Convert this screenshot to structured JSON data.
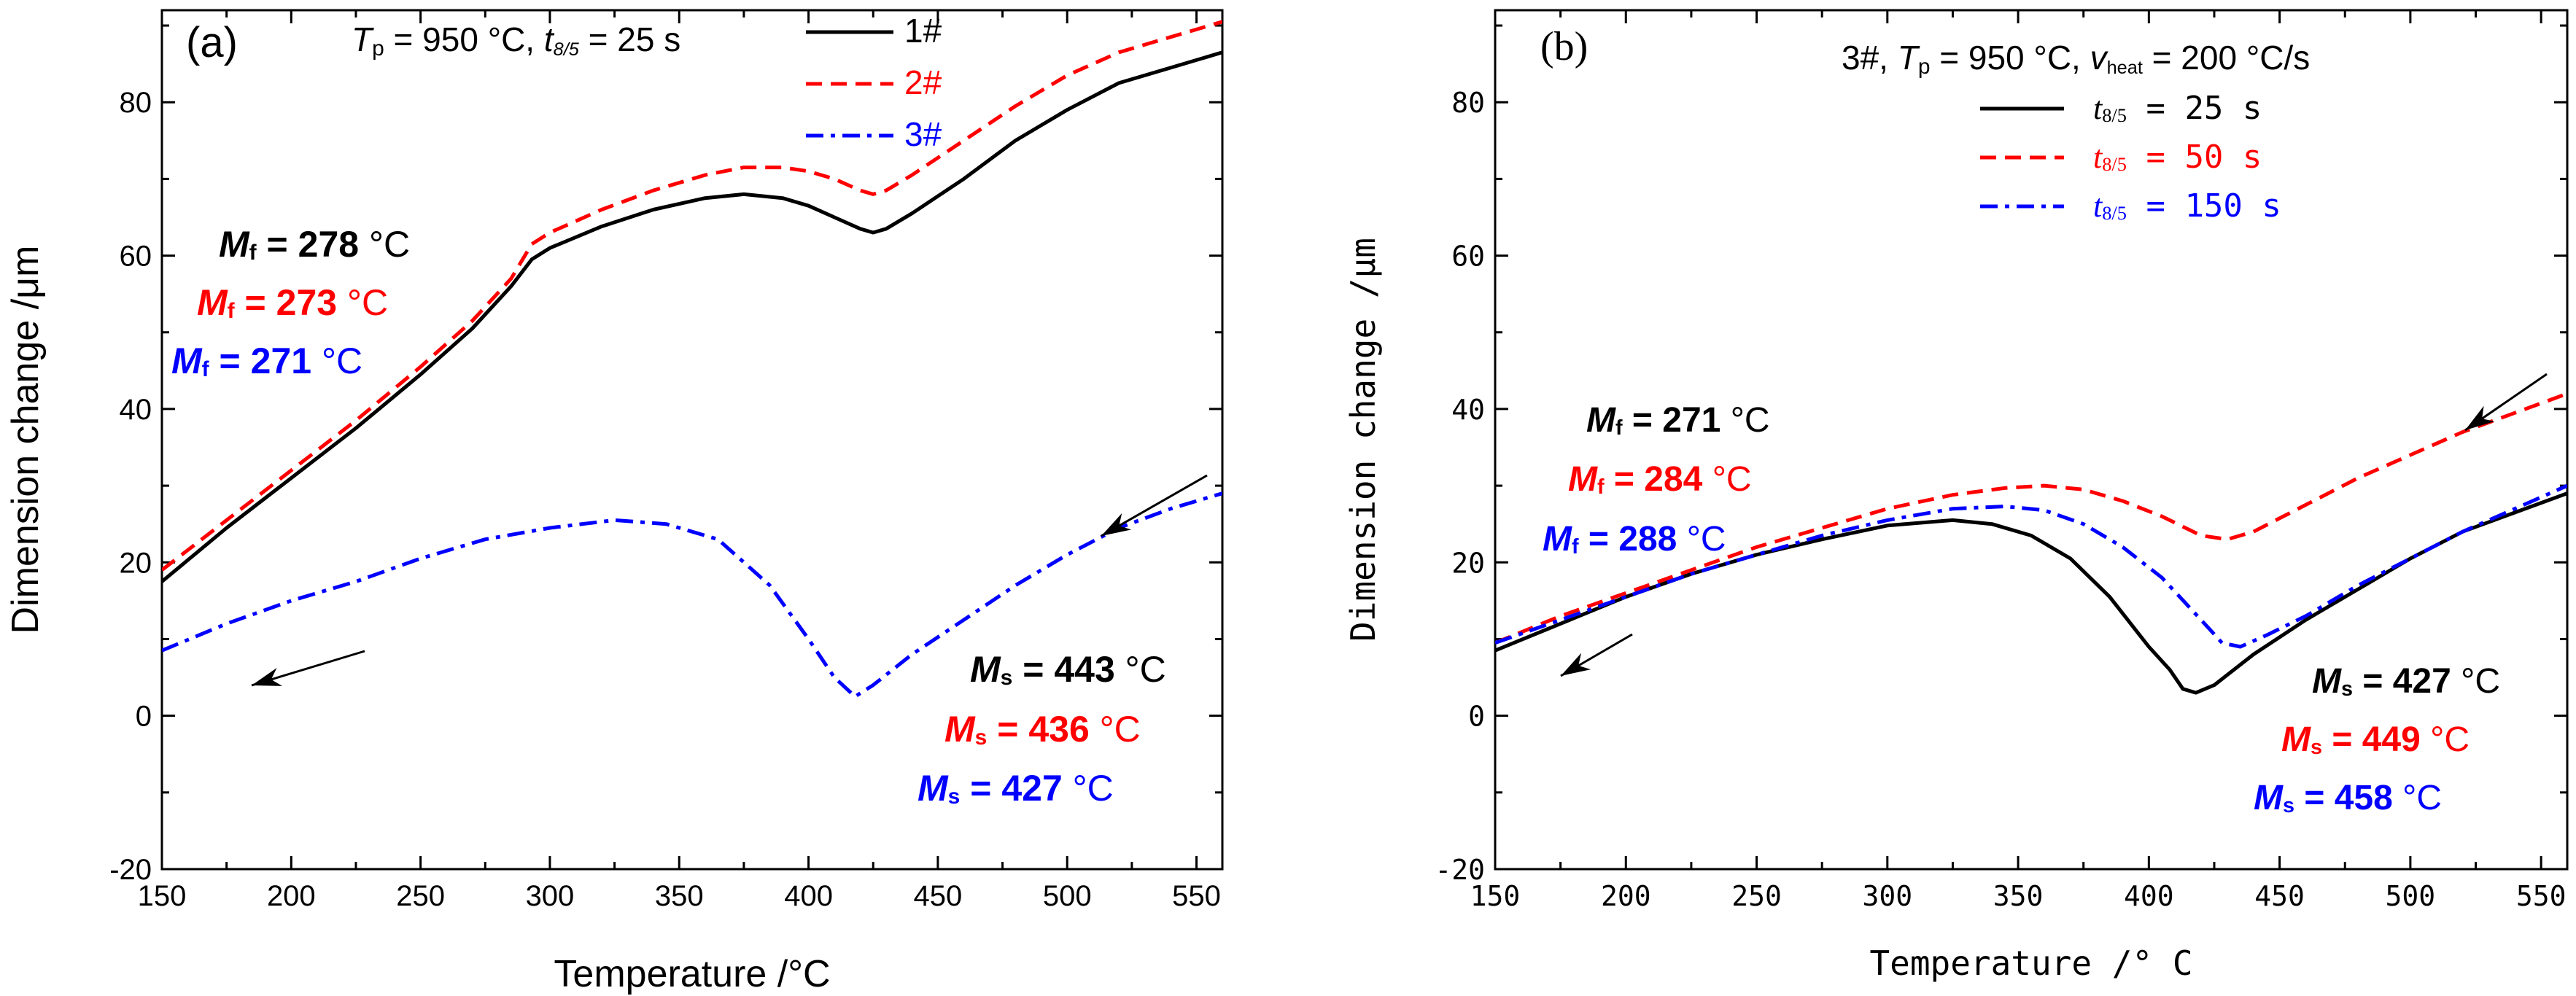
{
  "chart_data": [
    {
      "panel": "(a)",
      "type": "line",
      "condition": {
        "T": "T",
        "T_sub": "p",
        "T_val": " = 950 °C, ",
        "t": "t",
        "t_sub": "8/5",
        "t_val": " = 25 s"
      },
      "xlabel": "Temperature /°C",
      "ylabel": "Dimension change /μm",
      "xlim": [
        150,
        560
      ],
      "ylim": [
        -20,
        92
      ],
      "xticks": [
        150,
        200,
        250,
        300,
        350,
        400,
        450,
        500,
        550
      ],
      "yticks": [
        -20,
        0,
        20,
        40,
        60,
        80
      ],
      "grid": false,
      "legend_position": "top-right",
      "series": [
        {
          "name": "1#",
          "color": "#000000",
          "dash": "solid",
          "x": [
            150,
            175,
            200,
            225,
            250,
            270,
            285,
            293,
            300,
            320,
            340,
            360,
            375,
            390,
            400,
            410,
            420,
            425,
            430,
            440,
            460,
            480,
            500,
            520,
            540,
            560
          ],
          "y": [
            17.5,
            24.5,
            31,
            37.5,
            44.5,
            50.5,
            56,
            59.5,
            61,
            63.8,
            66,
            67.5,
            68,
            67.5,
            66.5,
            65,
            63.5,
            63,
            63.5,
            65.5,
            70,
            75,
            79,
            82.5,
            84.5,
            86.5
          ]
        },
        {
          "name": "2#",
          "color": "#ff0000",
          "dash": "dashed",
          "x": [
            150,
            175,
            200,
            225,
            250,
            270,
            285,
            293,
            300,
            320,
            340,
            360,
            375,
            390,
            400,
            410,
            420,
            425,
            430,
            440,
            460,
            480,
            500,
            520,
            540,
            560
          ],
          "y": [
            19,
            25.5,
            32,
            38.5,
            45.5,
            51.5,
            57,
            61.5,
            63,
            66,
            68.5,
            70.5,
            71.5,
            71.5,
            71,
            70,
            68.5,
            68,
            68.5,
            70.5,
            75,
            79.5,
            83.5,
            86.5,
            88.5,
            90.5
          ]
        },
        {
          "name": "3#",
          "color": "#0000ff",
          "dash": "dashdot",
          "x": [
            150,
            175,
            200,
            225,
            250,
            275,
            300,
            325,
            345,
            365,
            385,
            400,
            410,
            418,
            425,
            440,
            460,
            480,
            500,
            520,
            540,
            560
          ],
          "y": [
            8.5,
            12,
            15,
            17.5,
            20.5,
            23,
            24.5,
            25.5,
            25,
            23,
            17,
            10,
            5,
            2.5,
            4,
            8,
            12.5,
            17,
            21,
            24.5,
            27,
            29
          ]
        }
      ],
      "annotations": [
        {
          "sym": "M",
          "sub": "f",
          "num": "278",
          "unit": " °C",
          "color": "#000000"
        },
        {
          "sym": "M",
          "sub": "f",
          "num": "273",
          "unit": " °C",
          "color": "#ff0000"
        },
        {
          "sym": "M",
          "sub": "f",
          "num": "271",
          "unit": " °C",
          "color": "#0000ff"
        },
        {
          "sym": "M",
          "sub": "s",
          "num": "443",
          "unit": " °C",
          "color": "#000000"
        },
        {
          "sym": "M",
          "sub": "s",
          "num": "436",
          "unit": " °C",
          "color": "#ff0000"
        },
        {
          "sym": "M",
          "sub": "s",
          "num": "427",
          "unit": " °C",
          "color": "#0000ff"
        }
      ]
    },
    {
      "panel": "(b)",
      "type": "line",
      "condition": {
        "pre": "3#, ",
        "T": "T",
        "T_sub": "p",
        "T_val": " = 950 °C, ",
        "v": "v",
        "v_sub": "heat",
        "v_val": " = 200 °C/s"
      },
      "xlabel": "Temperature /° C",
      "ylabel": "Dimension change /μm",
      "xlim": [
        150,
        560
      ],
      "ylim": [
        -20,
        92
      ],
      "xticks": [
        150,
        200,
        250,
        300,
        350,
        400,
        450,
        500,
        550
      ],
      "yticks": [
        -20,
        0,
        20,
        40,
        60,
        80
      ],
      "grid": false,
      "legend_position": "top-right",
      "series": [
        {
          "name": "t8/5 = 25 s",
          "label_t": "t",
          "label_sub": "8/5",
          "label_rest": " = 25 s",
          "color": "#000000",
          "dash": "solid",
          "x": [
            150,
            175,
            200,
            225,
            250,
            275,
            300,
            325,
            340,
            355,
            370,
            385,
            400,
            408,
            413,
            418,
            425,
            440,
            460,
            480,
            500,
            520,
            540,
            560
          ],
          "y": [
            8.5,
            12,
            15.5,
            18.5,
            21,
            23,
            24.8,
            25.5,
            25,
            23.5,
            20.5,
            15.5,
            9,
            6,
            3.5,
            3,
            4,
            8,
            12.5,
            16.5,
            20.5,
            24,
            26.5,
            29
          ]
        },
        {
          "name": "t8/5 = 50 s",
          "label_t": "t",
          "label_sub": "8/5",
          "label_rest": " = 50 s",
          "color": "#ff0000",
          "dash": "dashed",
          "x": [
            150,
            175,
            200,
            225,
            250,
            275,
            300,
            325,
            345,
            360,
            375,
            390,
            405,
            420,
            430,
            440,
            460,
            480,
            500,
            520,
            540,
            560
          ],
          "y": [
            9.5,
            13,
            16,
            19,
            22,
            24.5,
            27,
            28.8,
            29.7,
            30,
            29.5,
            28,
            26,
            23.5,
            23,
            24,
            27.5,
            31,
            34,
            37,
            39.5,
            42
          ]
        },
        {
          "name": "t8/5 = 150 s",
          "label_t": "t",
          "label_sub": "8/5",
          "label_rest": " = 150 s",
          "color": "#0000ff",
          "dash": "dashdot",
          "x": [
            150,
            175,
            200,
            225,
            250,
            275,
            300,
            325,
            345,
            360,
            375,
            390,
            405,
            420,
            428,
            435,
            445,
            460,
            480,
            500,
            520,
            540,
            560
          ],
          "y": [
            9.5,
            12.5,
            15.5,
            18.5,
            21,
            23.5,
            25.5,
            27,
            27.3,
            26.8,
            25,
            22,
            18,
            12.5,
            9.5,
            9,
            10.5,
            13,
            17,
            20.5,
            24,
            27,
            30
          ]
        }
      ],
      "annotations": [
        {
          "sym": "M",
          "sub": "f",
          "num": "271",
          "unit": " °C",
          "color": "#000000"
        },
        {
          "sym": "M",
          "sub": "f",
          "num": "284",
          "unit": " °C",
          "color": "#ff0000"
        },
        {
          "sym": "M",
          "sub": "f",
          "num": "288",
          "unit": " °C",
          "color": "#0000ff"
        },
        {
          "sym": "M",
          "sub": "s",
          "num": "427",
          "unit": " °C",
          "color": "#000000"
        },
        {
          "sym": "M",
          "sub": "s",
          "num": "449",
          "unit": " °C",
          "color": "#ff0000"
        },
        {
          "sym": "M",
          "sub": "s",
          "num": "458",
          "unit": " °C",
          "color": "#0000ff"
        }
      ]
    }
  ]
}
